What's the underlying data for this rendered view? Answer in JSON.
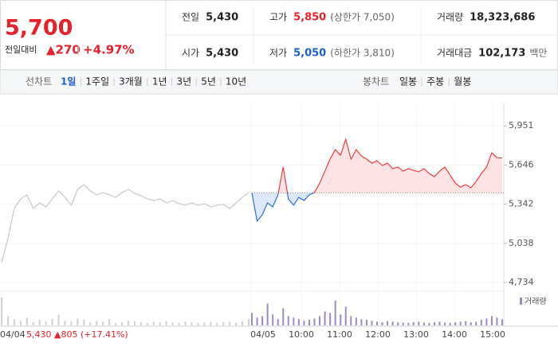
{
  "header": {
    "price": "5,700",
    "change_label": "전일대비",
    "change": "▲270",
    "change_pct": "+4.97%",
    "stats": [
      {
        "label": "전일",
        "value": "5,430"
      },
      {
        "label": "고가",
        "value": "5,850",
        "note": "(상한가 7,050)",
        "color": "#e8202a"
      },
      {
        "label": "거래량",
        "value": "18,323,686"
      },
      {
        "label": "시가",
        "value": "5,430"
      },
      {
        "label": "저가",
        "value": "5,050",
        "note": "(하한가 3,810)",
        "color": "#1a5fd0"
      },
      {
        "label": "거래대금",
        "value": "102,173",
        "note": "백만"
      }
    ]
  },
  "tabs": {
    "line_label": "선차트",
    "line": [
      "1일",
      "1주일",
      "3개월",
      "1년",
      "3년",
      "5년",
      "10년"
    ],
    "selected": 0,
    "candle_label": "봉차트",
    "candle": [
      "일봉",
      "주봉",
      "월봉"
    ]
  },
  "chart_data": {
    "type": "line",
    "ylim": [
      4700,
      6100
    ],
    "yticks": [
      {
        "value": 5951,
        "label": "5,951"
      },
      {
        "value": 5646,
        "label": "5,646"
      },
      {
        "value": 5342,
        "label": "5,342"
      },
      {
        "value": 5038,
        "label": "5,038"
      },
      {
        "value": 4734,
        "label": "4,734"
      }
    ],
    "grid": true,
    "baseline": 5430,
    "series": [
      {
        "color": "#c8c8c8",
        "values": [
          4889,
          5074,
          5309,
          5383,
          5414,
          5309,
          5352,
          5321,
          5383,
          5445,
          5395,
          5334,
          5457,
          5494,
          5445,
          5414,
          5432,
          5414,
          5395,
          5432,
          5457,
          5426,
          5408,
          5383,
          5371,
          5383,
          5352,
          5371,
          5346,
          5334,
          5352,
          5334,
          5346,
          5321,
          5334,
          5340,
          5309,
          5352,
          5395,
          5432
        ]
      },
      {
        "color_up": "#f03c3c",
        "color_down": "#2d6fd8",
        "values": [
          5430,
          5210,
          5260,
          5352,
          5321,
          5414,
          5630,
          5383,
          5334,
          5395,
          5371,
          5414,
          5432,
          5506,
          5599,
          5692,
          5766,
          5722,
          5846,
          5692,
          5766,
          5716,
          5692,
          5661,
          5679,
          5642,
          5661,
          5618,
          5630,
          5599,
          5618,
          5605,
          5593,
          5618,
          5580,
          5556,
          5599,
          5630,
          5568,
          5506,
          5475,
          5494,
          5469,
          5518,
          5580,
          5630,
          5741,
          5704,
          5700
        ]
      }
    ],
    "volume": {
      "name": "거래량",
      "color": "#9b8ac4",
      "ylim": [
        0,
        100
      ],
      "series": [
        [
          90,
          30,
          20,
          15,
          25,
          10,
          18,
          12,
          20,
          35,
          15,
          12,
          22,
          18,
          10,
          14,
          12,
          20,
          8,
          10,
          15,
          12,
          10,
          8,
          12,
          10,
          14,
          9,
          8,
          12,
          10,
          8,
          9,
          11,
          8,
          10,
          12,
          9,
          14,
          20
        ],
        [
          40,
          25,
          30,
          70,
          35,
          20,
          55,
          30,
          25,
          20,
          15,
          18,
          22,
          30,
          45,
          40,
          80,
          35,
          60,
          30,
          25,
          20,
          18,
          15,
          12,
          10,
          14,
          12,
          10,
          9,
          8,
          10,
          12,
          9,
          8,
          10,
          12,
          9,
          8,
          10,
          12,
          14,
          10,
          12,
          18,
          22,
          30,
          25,
          20
        ]
      ]
    },
    "prev_label": "04/04",
    "prev_summary": "5,430 ▲805 (+17.41%)",
    "xticks": [
      "04/05",
      "10:00",
      "11:00",
      "12:00",
      "13:00",
      "14:00",
      "15:00"
    ]
  }
}
